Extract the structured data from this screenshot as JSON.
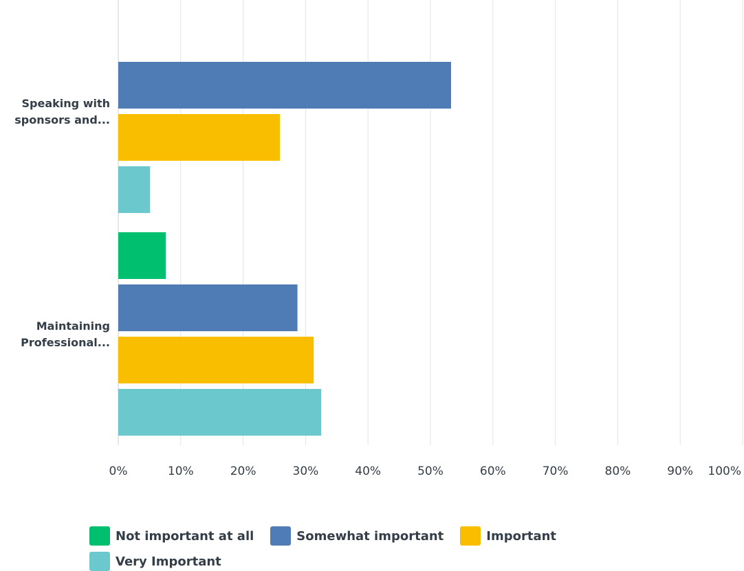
{
  "chart_data": {
    "type": "bar",
    "orientation": "horizontal",
    "categories": [
      [
        "Speaking with",
        "sponsors and..."
      ],
      [
        "Maintaining",
        "Professional..."
      ]
    ],
    "series": [
      {
        "name": "Not important at all",
        "color": "#00bf6f",
        "values": [
          0,
          7.6
        ]
      },
      {
        "name": "Somewhat important",
        "color": "#507cb6",
        "values": [
          53.3,
          28.7
        ]
      },
      {
        "name": "Important",
        "color": "#f9be00",
        "values": [
          25.9,
          31.3
        ]
      },
      {
        "name": "Very Important",
        "color": "#6bc8cd",
        "values": [
          5.1,
          32.5
        ]
      }
    ],
    "xlim": [
      0,
      100
    ],
    "xticks": [
      "0%",
      "10%",
      "20%",
      "30%",
      "40%",
      "50%",
      "60%",
      "70%",
      "80%",
      "90%",
      "100%"
    ],
    "title": "",
    "xlabel": "",
    "ylabel": "",
    "grid": true,
    "legend_position": "bottom-left"
  }
}
